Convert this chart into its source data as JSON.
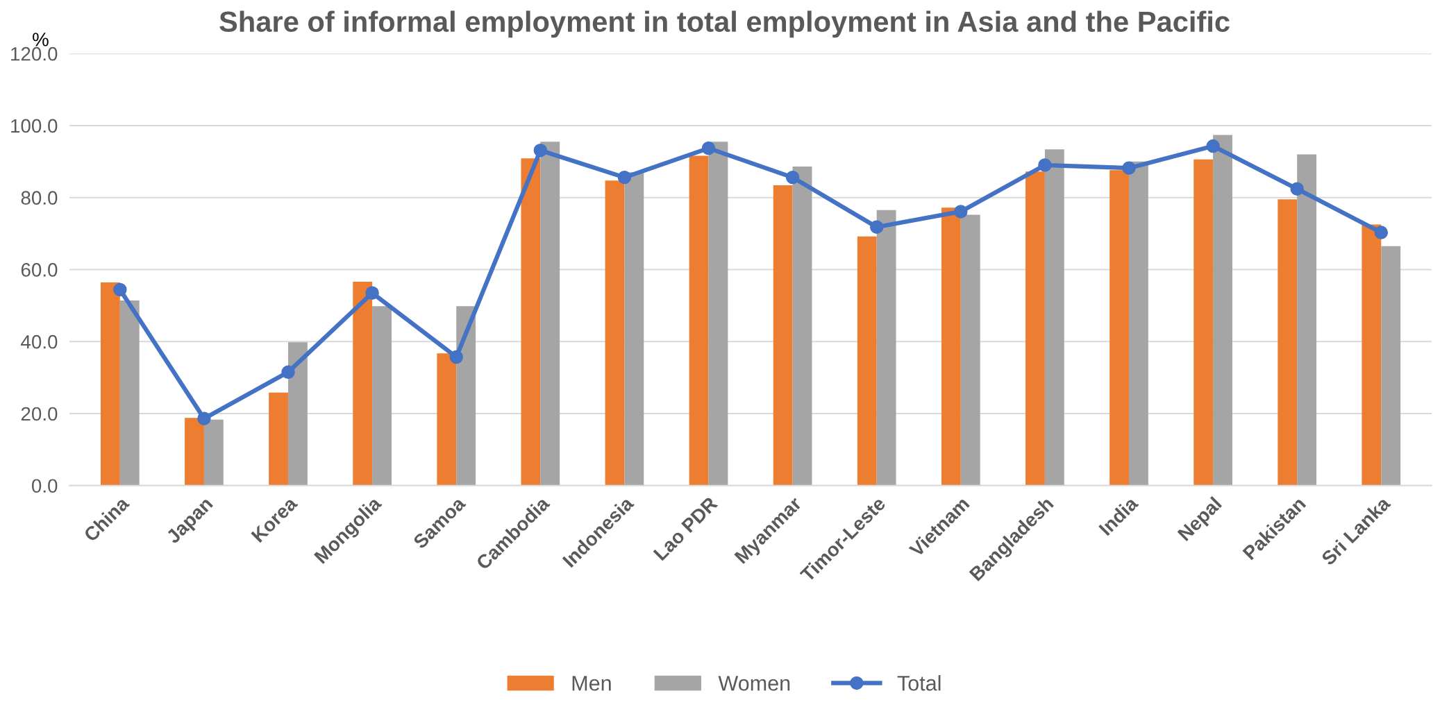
{
  "chart_data": {
    "type": "bar",
    "title": "Share of informal employment in total employment in Asia and the Pacific",
    "ylabel": "%",
    "categories": [
      "China",
      "Japan",
      "Korea",
      "Mongolia",
      "Samoa",
      "Cambodia",
      "Indonesia",
      "Lao PDR",
      "Myanmar",
      "Timor-Leste",
      "Vietnam",
      "Bangladesh",
      "India",
      "Nepal",
      "Pakistan",
      "Sri Lanka"
    ],
    "series": [
      {
        "name": "Men",
        "color": "#ed7d31",
        "values": [
          56.4,
          18.8,
          25.8,
          56.6,
          36.7,
          90.9,
          84.7,
          91.6,
          83.4,
          69.2,
          77.2,
          87.2,
          87.6,
          90.6,
          79.5,
          72.5
        ]
      },
      {
        "name": "Women",
        "color": "#a5a5a5",
        "values": [
          51.4,
          18.3,
          39.8,
          49.8,
          49.8,
          95.5,
          87.0,
          95.5,
          88.6,
          76.5,
          75.2,
          93.4,
          90.0,
          97.4,
          92.0,
          66.5
        ]
      },
      {
        "name": "Total",
        "type": "line",
        "color": "#4472c4",
        "marker": "circle",
        "line_style": "solid",
        "values": [
          54.4,
          18.6,
          31.5,
          53.5,
          35.7,
          93.1,
          85.6,
          93.7,
          85.6,
          71.8,
          76.1,
          89.0,
          88.2,
          94.3,
          82.4,
          70.3
        ]
      }
    ],
    "ylim": [
      0,
      120
    ],
    "yticks": [
      {
        "value": 0,
        "label": "0.0"
      },
      {
        "value": 20,
        "label": "20.0"
      },
      {
        "value": 40,
        "label": "40.0"
      },
      {
        "value": 60,
        "label": "60.0"
      },
      {
        "value": 80,
        "label": "80.0"
      },
      {
        "value": 100,
        "label": "100.0"
      },
      {
        "value": 120,
        "label": "120.0"
      }
    ],
    "grid": "y",
    "legend": "bottom"
  }
}
